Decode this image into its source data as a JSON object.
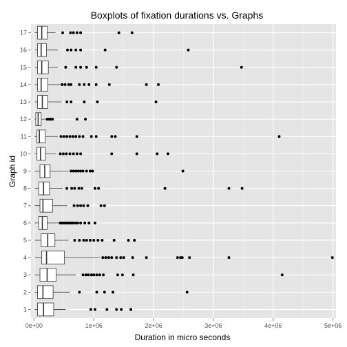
{
  "chart_data": {
    "type": "boxplot",
    "orientation": "horizontal",
    "title": "Boxplots of fixation durations vs. Graphs",
    "xlabel": "Duration in micro seconds",
    "ylabel": "Graph id",
    "xlim": [
      -50000,
      5050000
    ],
    "xticks": [
      0,
      1000000,
      2000000,
      3000000,
      4000000,
      5000000
    ],
    "xtick_labels": [
      "0e+00",
      "1e+06",
      "2e+06",
      "3e+06",
      "4e+06",
      "5e+06"
    ],
    "categories": [
      "1",
      "2",
      "3",
      "4",
      "5",
      "6",
      "7",
      "8",
      "9",
      "10",
      "11",
      "12",
      "13",
      "14",
      "15",
      "16",
      "17"
    ],
    "grid": true,
    "panel_background": "#e5e5e5",
    "grid_color": "#ffffff",
    "box_fill": "#ffffff",
    "outline_color": "#333333",
    "point_color": "#000000",
    "boxes": [
      {
        "id": "1",
        "whisker_low": 10000,
        "q1": 60000,
        "median": 160000,
        "q3": 330000,
        "whisker_high": 530000,
        "outliers": [
          950000,
          1020000,
          1220000,
          1380000,
          1460000,
          1620000
        ]
      },
      {
        "id": "2",
        "whisker_low": 10000,
        "q1": 60000,
        "median": 150000,
        "q3": 320000,
        "whisker_high": 600000,
        "outliers": [
          760000,
          1050000,
          1180000,
          1320000,
          2560000
        ]
      },
      {
        "id": "3",
        "whisker_low": 10000,
        "q1": 100000,
        "median": 220000,
        "q3": 370000,
        "whisker_high": 700000,
        "outliers": [
          820000,
          870000,
          910000,
          960000,
          1000000,
          1050000,
          1100000,
          1160000,
          1400000,
          1480000,
          1660000,
          4150000
        ]
      },
      {
        "id": "4",
        "whisker_low": 10000,
        "q1": 130000,
        "median": 210000,
        "q3": 510000,
        "whisker_high": 1100000,
        "outliers": [
          1150000,
          1200000,
          1250000,
          1300000,
          1380000,
          1450000,
          1500000,
          1650000,
          1880000,
          2400000,
          2450000,
          2480000,
          2600000,
          3260000,
          4990000
        ]
      },
      {
        "id": "5",
        "whisker_low": 10000,
        "q1": 120000,
        "median": 230000,
        "q3": 350000,
        "whisker_high": 580000,
        "outliers": [
          680000,
          760000,
          830000,
          880000,
          940000,
          1000000,
          1070000,
          1140000,
          1340000,
          1580000,
          1680000
        ]
      },
      {
        "id": "6",
        "whisker_low": 10000,
        "q1": 80000,
        "median": 140000,
        "q3": 220000,
        "whisker_high": 420000,
        "outliers": [
          440000,
          470000,
          500000,
          530000,
          560000,
          590000,
          620000,
          650000,
          690000,
          730000,
          780000,
          850000,
          920000,
          1020000
        ]
      },
      {
        "id": "7",
        "whisker_low": 10000,
        "q1": 100000,
        "median": 150000,
        "q3": 310000,
        "whisker_high": 560000,
        "outliers": [
          670000,
          730000,
          780000,
          830000,
          900000,
          1120000,
          1180000
        ]
      },
      {
        "id": "8",
        "whisker_low": 10000,
        "q1": 80000,
        "median": 160000,
        "q3": 260000,
        "whisker_high": 480000,
        "outliers": [
          550000,
          630000,
          680000,
          750000,
          800000,
          1020000,
          1080000,
          2190000,
          3260000,
          3480000
        ]
      },
      {
        "id": "9",
        "whisker_low": 10000,
        "q1": 100000,
        "median": 180000,
        "q3": 270000,
        "whisker_high": 580000,
        "outliers": [
          620000,
          660000,
          700000,
          740000,
          780000,
          820000,
          880000,
          940000,
          980000,
          2490000
        ]
      },
      {
        "id": "10",
        "whisker_low": 10000,
        "q1": 50000,
        "median": 110000,
        "q3": 190000,
        "whisker_high": 380000,
        "outliers": [
          440000,
          490000,
          540000,
          600000,
          660000,
          720000,
          780000,
          1300000,
          1720000,
          2060000,
          2240000
        ]
      },
      {
        "id": "11",
        "whisker_low": 10000,
        "q1": 50000,
        "median": 90000,
        "q3": 190000,
        "whisker_high": 400000,
        "outliers": [
          450000,
          500000,
          550000,
          600000,
          650000,
          700000,
          760000,
          820000,
          960000,
          1040000,
          1300000,
          1360000,
          1720000,
          4100000
        ]
      },
      {
        "id": "12",
        "whisker_low": 10000,
        "q1": 30000,
        "median": 70000,
        "q3": 120000,
        "whisker_high": 190000,
        "outliers": [
          220000,
          250000,
          280000,
          310000,
          720000,
          860000
        ]
      },
      {
        "id": "13",
        "whisker_low": 10000,
        "q1": 60000,
        "median": 140000,
        "q3": 230000,
        "whisker_high": 460000,
        "outliers": [
          550000,
          620000,
          840000,
          1060000,
          2040000
        ]
      },
      {
        "id": "14",
        "whisker_low": 10000,
        "q1": 60000,
        "median": 120000,
        "q3": 230000,
        "whisker_high": 440000,
        "outliers": [
          470000,
          520000,
          580000,
          620000,
          760000,
          840000,
          920000,
          1040000,
          1260000,
          1880000,
          2080000
        ]
      },
      {
        "id": "15",
        "whisker_low": 10000,
        "q1": 60000,
        "median": 130000,
        "q3": 240000,
        "whisker_high": 400000,
        "outliers": [
          530000,
          700000,
          780000,
          880000,
          1040000,
          1380000,
          3470000
        ]
      },
      {
        "id": "16",
        "whisker_low": 10000,
        "q1": 60000,
        "median": 120000,
        "q3": 210000,
        "whisker_high": 400000,
        "outliers": [
          560000,
          620000,
          700000,
          780000,
          1190000,
          2580000
        ]
      },
      {
        "id": "17",
        "whisker_low": 10000,
        "q1": 60000,
        "median": 130000,
        "q3": 220000,
        "whisker_high": 360000,
        "outliers": [
          480000,
          610000,
          660000,
          720000,
          780000,
          1420000,
          1640000
        ]
      }
    ]
  }
}
